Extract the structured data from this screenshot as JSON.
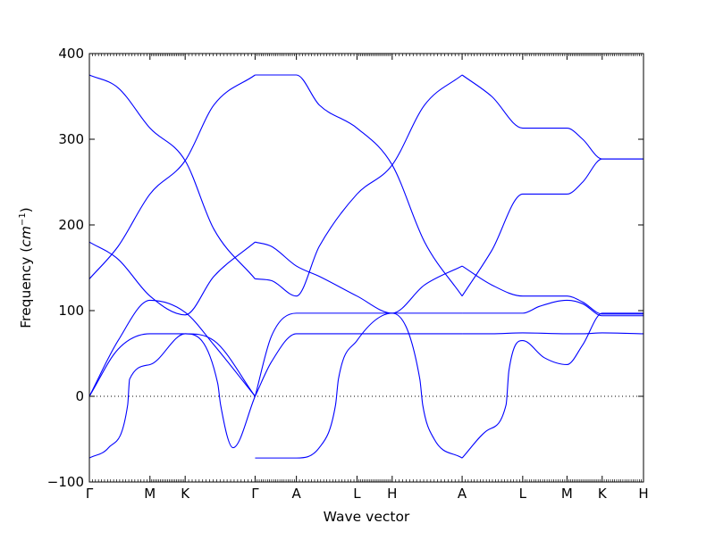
{
  "chart_data": {
    "type": "line",
    "title": "",
    "xlabel": "Wave vector",
    "ylabel": "Frequency ($cm^{-1}$)",
    "ylabel_parts": {
      "text": "Frequency (",
      "unit_base": "cm",
      "unit_exp": "−1",
      "close": ")"
    },
    "ylim": [
      -100,
      400
    ],
    "yticks": [
      -100,
      0,
      100,
      200,
      300,
      400
    ],
    "ytick_labels": [
      "−100",
      "0",
      "100",
      "200",
      "300",
      "400"
    ],
    "x_path_labels": [
      "Γ",
      "M",
      "K",
      "Γ",
      "A",
      "L",
      "H",
      "A",
      "L",
      "M",
      "K",
      "H"
    ],
    "x_path_positions": [
      0,
      0.6325,
      1.0,
      1.7301,
      2.1614,
      2.7939,
      3.1614,
      3.8915,
      4.524,
      4.9862,
      5.3537,
      5.785
    ],
    "zero_line": {
      "y": 0,
      "style": "dotted"
    },
    "line_color": "#0000ff",
    "grid": false,
    "legend": "none",
    "bands": [
      {
        "x": [
          0,
          0.3,
          0.6325,
          1.0,
          1.3,
          1.7301
        ],
        "y": [
          375,
          360,
          313,
          275,
          195,
          137
        ]
      },
      {
        "x": [
          0,
          0.3,
          0.6325,
          1.0,
          1.3,
          1.7301
        ],
        "y": [
          137,
          175,
          236,
          275,
          340,
          375
        ]
      },
      {
        "x": [
          0,
          0.3,
          0.6325,
          1.0,
          1.3,
          1.7301
        ],
        "y": [
          180,
          160,
          117,
          95,
          140,
          180
        ]
      },
      {
        "x": [
          0,
          0.3,
          0.6325,
          1.0,
          1.3,
          1.7301
        ],
        "y": [
          0,
          65,
          112,
          98,
          60,
          0
        ]
      },
      {
        "x": [
          0,
          0.3,
          0.6325,
          1.0,
          1.3,
          1.7301
        ],
        "y": [
          0,
          55,
          73,
          73,
          65,
          0
        ]
      },
      {
        "x": [
          0,
          0.2,
          0.4,
          0.42,
          0.6325,
          1.0,
          1.34,
          1.37,
          1.5,
          1.7301
        ],
        "y": [
          -72,
          -60,
          -10,
          20,
          37,
          73,
          15,
          -10,
          -60,
          0
        ]
      },
      {
        "x": [
          1.7301,
          1.9,
          2.1614,
          2.4,
          2.7939,
          3.1614,
          3.5,
          3.8915
        ],
        "y": [
          375,
          375,
          375,
          340,
          313,
          270,
          180,
          117
        ]
      },
      {
        "x": [
          1.7301,
          1.9,
          2.1614,
          2.4,
          2.7939,
          3.1614,
          3.5,
          3.8915
        ],
        "y": [
          137,
          135,
          117,
          175,
          236,
          270,
          340,
          375
        ]
      },
      {
        "x": [
          1.7301,
          1.9,
          2.1614,
          2.4,
          2.7939,
          3.1614,
          3.5,
          3.8915
        ],
        "y": [
          180,
          175,
          152,
          140,
          117,
          97,
          97,
          97
        ]
      },
      {
        "x": [
          1.7301,
          1.9,
          2.1614,
          2.4,
          2.7939,
          3.1614,
          3.5,
          3.8915
        ],
        "y": [
          0,
          70,
          97,
          97,
          97,
          97,
          130,
          152
        ]
      },
      {
        "x": [
          1.7301,
          1.9,
          2.1614,
          2.4,
          2.7939,
          3.1614,
          3.5,
          3.8915
        ],
        "y": [
          0,
          40,
          73,
          73,
          73,
          73,
          73,
          73
        ]
      },
      {
        "x": [
          1.7301,
          1.9,
          2.1614,
          2.4,
          2.57,
          2.6,
          2.7939,
          3.1614,
          3.45,
          3.48,
          3.6,
          3.8915
        ],
        "y": [
          -72,
          -72,
          -72,
          -60,
          -10,
          20,
          65,
          97,
          20,
          -10,
          -50,
          -72
        ]
      },
      {
        "x": [
          3.8915,
          4.2,
          4.524,
          4.9862,
          5.15,
          5.3537,
          5.785
        ],
        "y": [
          375,
          350,
          313,
          313,
          300,
          277,
          277
        ]
      },
      {
        "x": [
          3.8915,
          4.2,
          4.524,
          4.9862,
          5.15,
          5.3537,
          5.785
        ],
        "y": [
          117,
          170,
          236,
          236,
          250,
          277,
          277
        ]
      },
      {
        "x": [
          3.8915,
          4.2,
          4.524,
          4.9862,
          5.15,
          5.3537,
          5.785
        ],
        "y": [
          152,
          130,
          117,
          117,
          110,
          96,
          96
        ]
      },
      {
        "x": [
          3.8915,
          4.2,
          4.524,
          4.7,
          4.9862,
          5.15,
          5.3537,
          5.785
        ],
        "y": [
          97,
          97,
          97,
          105,
          112,
          108,
          94,
          94
        ]
      },
      {
        "x": [
          3.8915,
          4.2,
          4.524,
          4.9862,
          5.15,
          5.3537,
          5.785
        ],
        "y": [
          73,
          73,
          74,
          73,
          73,
          74,
          73
        ]
      },
      {
        "x": [
          3.8915,
          4.15,
          4.35,
          4.38,
          4.524,
          4.75,
          4.9862,
          5.15,
          5.3537,
          5.785
        ],
        "y": [
          -72,
          -40,
          -10,
          30,
          65,
          45,
          37,
          60,
          97,
          97
        ]
      }
    ]
  }
}
